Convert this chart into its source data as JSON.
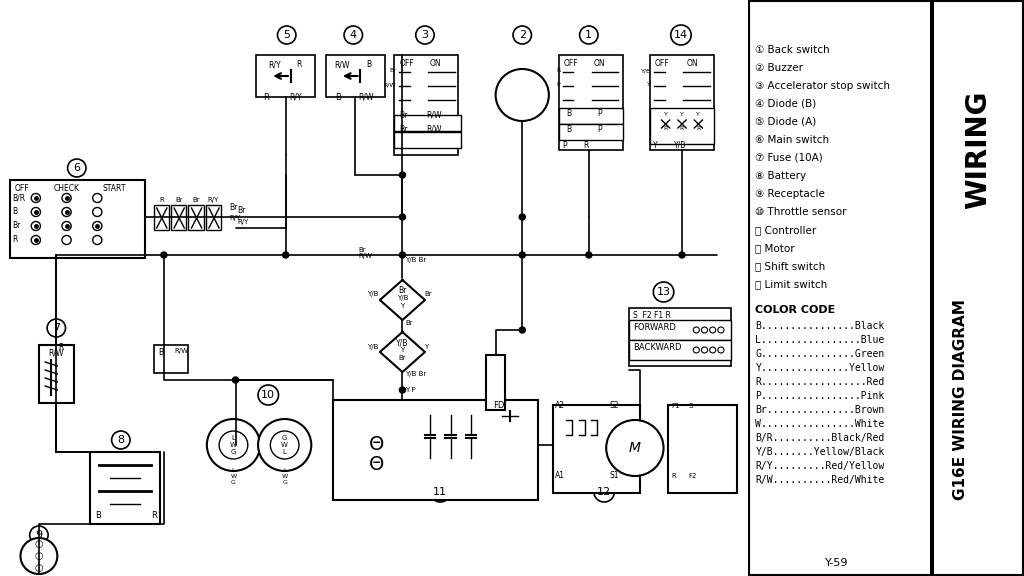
{
  "title": "G16E WIRING DIAGRAM",
  "subtitle": "WIRING",
  "page_ref": "Y-59",
  "bg_color": "#ffffff",
  "diagram_bg": "#e8e8e8",
  "component_labels": [
    "Back switch",
    "Buzzer",
    "Accelerator stop switch",
    "Diode (B)",
    "Diode (A)",
    "Main switch",
    "Fuse (10A)",
    "Battery",
    "Receptacle",
    "Throttle sensor",
    "Controller",
    "Motor",
    "Shift switch",
    "Limit switch"
  ],
  "color_codes": [
    [
      "B",
      "Black"
    ],
    [
      "L",
      "Blue"
    ],
    [
      "G",
      "Green"
    ],
    [
      "Y",
      "Yellow"
    ],
    [
      "R",
      "Red"
    ],
    [
      "P",
      "Pink"
    ],
    [
      "Br",
      "Brown"
    ],
    [
      "W",
      "White"
    ],
    [
      "B/R",
      "Black/Red"
    ],
    [
      "Y/B",
      "Yellow/Black"
    ],
    [
      "R/Y",
      "Red/Yellow"
    ],
    [
      "R/W",
      "Red/White"
    ]
  ]
}
